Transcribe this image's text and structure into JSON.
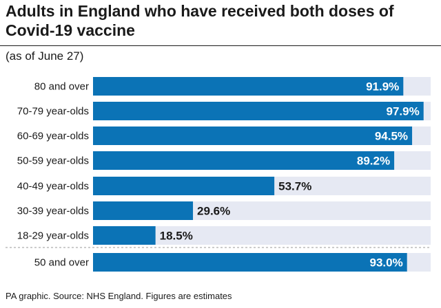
{
  "title": "Adults in England who have received both doses of Covid-19 vaccine",
  "subtitle": "(as of June 27)",
  "source": "PA graphic. Source: NHS England. Figures are estimates",
  "colors": {
    "bar": "#0b73b6",
    "track": "#e6e9f3",
    "separator": "#9a9a9a"
  },
  "chart_data": {
    "type": "bar",
    "orientation": "horizontal",
    "unit": "%",
    "xlim": [
      0,
      100
    ],
    "categories": [
      "80 and over",
      "70-79 year-olds",
      "60-69 year-olds",
      "50-59 year-olds",
      "40-49 year-olds",
      "30-39 year-olds",
      "18-29 year-olds",
      "50 and over"
    ],
    "values": [
      91.9,
      97.9,
      94.5,
      89.2,
      53.7,
      29.6,
      18.5,
      93.0
    ],
    "value_labels": [
      "91.9%",
      "97.9%",
      "94.5%",
      "89.2%",
      "53.7%",
      "29.6%",
      "18.5%",
      "93.0%"
    ],
    "grid": false,
    "legend": "none"
  }
}
